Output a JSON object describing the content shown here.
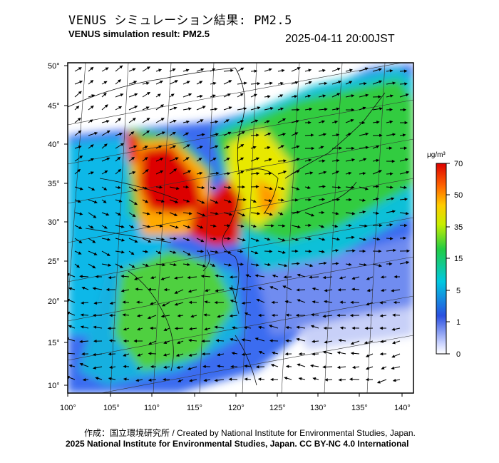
{
  "header": {
    "title_jp": "VENUS シミュレーション結果: PM2.5",
    "title_en": "VENUS simulation result: PM2.5",
    "timestamp": "2025-04-11 20:00JST"
  },
  "map": {
    "lat_labels": [
      "50°",
      "45°",
      "40°",
      "35°",
      "30°",
      "25°",
      "20°",
      "15°",
      "10°"
    ],
    "lon_labels": [
      "100°",
      "105°",
      "110°",
      "115°",
      "120°",
      "125°",
      "130°",
      "135°",
      "140°"
    ],
    "lat_range": [
      9,
      51
    ],
    "lon_range": [
      100,
      142
    ]
  },
  "legend": {
    "unit": "μg/m³",
    "levels": [
      "70",
      "50",
      "35",
      "15",
      "5",
      "1",
      "0"
    ],
    "colors": [
      "#dd0000",
      "#ff8800",
      "#ffee00",
      "#33cc33",
      "#00ccdd",
      "#2a6cf0",
      "#ffffff"
    ]
  },
  "footer": {
    "credit_line1": "作成：国立環境研究所 / Created by National Institute for Environmental Studies, Japan.",
    "credit_line2": "2025 National Institute for Environmental Studies, Japan. CC BY-NC 4.0 International"
  }
}
